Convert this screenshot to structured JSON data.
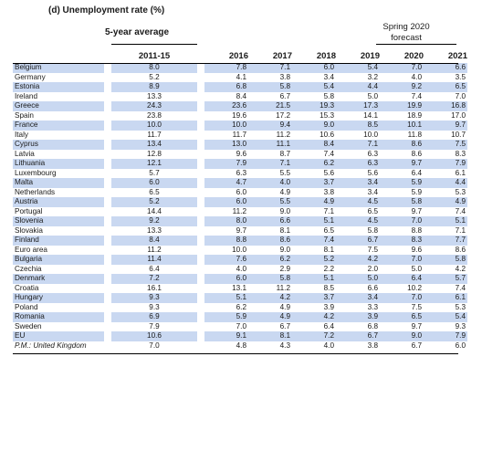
{
  "title": "(d) Unemployment rate (%)",
  "header": {
    "avg_group": "5-year average",
    "forecast_group_line1": "Spring 2020",
    "forecast_group_line2": "forecast",
    "columns": [
      "2011-15",
      "2016",
      "2017",
      "2018",
      "2019",
      "2020",
      "2021"
    ]
  },
  "colors": {
    "highlight": "#c9d8f1"
  },
  "rows": [
    {
      "name": "Belgium",
      "v": [
        "8.0",
        "7.8",
        "7.1",
        "6.0",
        "5.4",
        "7.0",
        "6.6"
      ],
      "hl": true
    },
    {
      "name": "Germany",
      "v": [
        "5.2",
        "4.1",
        "3.8",
        "3.4",
        "3.2",
        "4.0",
        "3.5"
      ],
      "hl": false
    },
    {
      "name": "Estonia",
      "v": [
        "8.9",
        "6.8",
        "5.8",
        "5.4",
        "4.4",
        "9.2",
        "6.5"
      ],
      "hl": true
    },
    {
      "name": "Ireland",
      "v": [
        "13.3",
        "8.4",
        "6.7",
        "5.8",
        "5.0",
        "7.4",
        "7.0"
      ],
      "hl": false
    },
    {
      "name": "Greece",
      "v": [
        "24.3",
        "23.6",
        "21.5",
        "19.3",
        "17.3",
        "19.9",
        "16.8"
      ],
      "hl": true
    },
    {
      "name": "Spain",
      "v": [
        "23.8",
        "19.6",
        "17.2",
        "15.3",
        "14.1",
        "18.9",
        "17.0"
      ],
      "hl": false
    },
    {
      "name": "France",
      "v": [
        "10.0",
        "10.0",
        "9.4",
        "9.0",
        "8.5",
        "10.1",
        "9.7"
      ],
      "hl": true
    },
    {
      "name": "Italy",
      "v": [
        "11.7",
        "11.7",
        "11.2",
        "10.6",
        "10.0",
        "11.8",
        "10.7"
      ],
      "hl": false
    },
    {
      "name": "Cyprus",
      "v": [
        "13.4",
        "13.0",
        "11.1",
        "8.4",
        "7.1",
        "8.6",
        "7.5"
      ],
      "hl": true
    },
    {
      "name": "Latvia",
      "v": [
        "12.8",
        "9.6",
        "8.7",
        "7.4",
        "6.3",
        "8.6",
        "8.3"
      ],
      "hl": false
    },
    {
      "name": "Lithuania",
      "v": [
        "12.1",
        "7.9",
        "7.1",
        "6.2",
        "6.3",
        "9.7",
        "7.9"
      ],
      "hl": true
    },
    {
      "name": "Luxembourg",
      "v": [
        "5.7",
        "6.3",
        "5.5",
        "5.6",
        "5.6",
        "6.4",
        "6.1"
      ],
      "hl": false
    },
    {
      "name": "Malta",
      "v": [
        "6.0",
        "4.7",
        "4.0",
        "3.7",
        "3.4",
        "5.9",
        "4.4"
      ],
      "hl": true
    },
    {
      "name": "Netherlands",
      "v": [
        "6.5",
        "6.0",
        "4.9",
        "3.8",
        "3.4",
        "5.9",
        "5.3"
      ],
      "hl": false
    },
    {
      "name": "Austria",
      "v": [
        "5.2",
        "6.0",
        "5.5",
        "4.9",
        "4.5",
        "5.8",
        "4.9"
      ],
      "hl": true
    },
    {
      "name": "Portugal",
      "v": [
        "14.4",
        "11.2",
        "9.0",
        "7.1",
        "6.5",
        "9.7",
        "7.4"
      ],
      "hl": false
    },
    {
      "name": "Slovenia",
      "v": [
        "9.2",
        "8.0",
        "6.6",
        "5.1",
        "4.5",
        "7.0",
        "5.1"
      ],
      "hl": true
    },
    {
      "name": "Slovakia",
      "v": [
        "13.3",
        "9.7",
        "8.1",
        "6.5",
        "5.8",
        "8.8",
        "7.1"
      ],
      "hl": false
    },
    {
      "name": "Finland",
      "v": [
        "8.4",
        "8.8",
        "8.6",
        "7.4",
        "6.7",
        "8.3",
        "7.7"
      ],
      "hl": true
    },
    {
      "name": "Euro area",
      "v": [
        "11.2",
        "10.0",
        "9.0",
        "8.1",
        "7.5",
        "9.6",
        "8.6"
      ],
      "hl": false
    },
    {
      "name": "Bulgaria",
      "v": [
        "11.4",
        "7.6",
        "6.2",
        "5.2",
        "4.2",
        "7.0",
        "5.8"
      ],
      "hl": true
    },
    {
      "name": "Czechia",
      "v": [
        "6.4",
        "4.0",
        "2.9",
        "2.2",
        "2.0",
        "5.0",
        "4.2"
      ],
      "hl": false
    },
    {
      "name": "Denmark",
      "v": [
        "7.2",
        "6.0",
        "5.8",
        "5.1",
        "5.0",
        "6.4",
        "5.7"
      ],
      "hl": true
    },
    {
      "name": "Croatia",
      "v": [
        "16.1",
        "13.1",
        "11.2",
        "8.5",
        "6.6",
        "10.2",
        "7.4"
      ],
      "hl": false
    },
    {
      "name": "Hungary",
      "v": [
        "9.3",
        "5.1",
        "4.2",
        "3.7",
        "3.4",
        "7.0",
        "6.1"
      ],
      "hl": true
    },
    {
      "name": "Poland",
      "v": [
        "9.3",
        "6.2",
        "4.9",
        "3.9",
        "3.3",
        "7.5",
        "5.3"
      ],
      "hl": false
    },
    {
      "name": "Romania",
      "v": [
        "6.9",
        "5.9",
        "4.9",
        "4.2",
        "3.9",
        "6.5",
        "5.4"
      ],
      "hl": true
    },
    {
      "name": "Sweden",
      "v": [
        "7.9",
        "7.0",
        "6.7",
        "6.4",
        "6.8",
        "9.7",
        "9.3"
      ],
      "hl": false
    },
    {
      "name": "EU",
      "v": [
        "10.6",
        "9.1",
        "8.1",
        "7.2",
        "6.7",
        "9.0",
        "7.9"
      ],
      "hl": true
    },
    {
      "name": "P.M.: United Kingdom",
      "v": [
        "7.0",
        "4.8",
        "4.3",
        "4.0",
        "3.8",
        "6.7",
        "6.0"
      ],
      "hl": false,
      "pm": true
    }
  ]
}
